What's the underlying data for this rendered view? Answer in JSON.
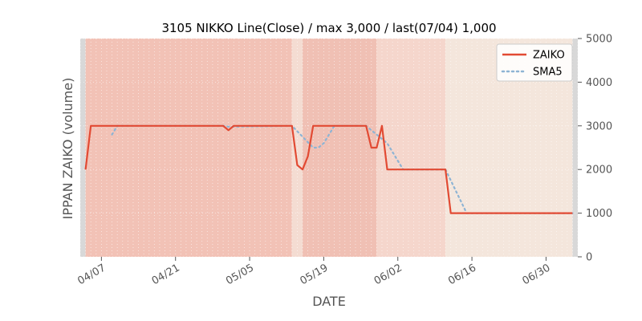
{
  "chart_data": {
    "type": "line",
    "title": "3105 NIKKO Line(Close) / max 3,000 / last(07/04) 1,000",
    "xlabel": "DATE",
    "ylabel": "IPPAN ZAIKO (volume)",
    "ylim": [
      0,
      5000
    ],
    "y_ticks": [
      0,
      1000,
      2000,
      3000,
      4000,
      5000
    ],
    "y_axis_side": "right",
    "xlim": [
      "2024-04-03",
      "2024-07-06"
    ],
    "x_ticks": [
      {
        "date": "2024-04-07",
        "label": "04/07"
      },
      {
        "date": "2024-04-21",
        "label": "04/21"
      },
      {
        "date": "2024-05-05",
        "label": "05/05"
      },
      {
        "date": "2024-05-19",
        "label": "05/19"
      },
      {
        "date": "2024-06-02",
        "label": "06/02"
      },
      {
        "date": "2024-06-16",
        "label": "06/16"
      },
      {
        "date": "2024-06-30",
        "label": "06/30"
      }
    ],
    "grid": true,
    "legend_position": "top-right",
    "background_bands": [
      {
        "start": "2024-04-03",
        "end": "2024-04-04",
        "color": "#d8d8d8"
      },
      {
        "start": "2024-04-04",
        "end": "2024-05-13",
        "color": "#f2c2b6"
      },
      {
        "start": "2024-05-13",
        "end": "2024-05-15",
        "color": "#f4dcd2"
      },
      {
        "start": "2024-05-15",
        "end": "2024-05-29",
        "color": "#f0c0b4"
      },
      {
        "start": "2024-05-29",
        "end": "2024-06-11",
        "color": "#f5d6cc"
      },
      {
        "start": "2024-06-11",
        "end": "2024-07-05",
        "color": "#f4e6dc"
      },
      {
        "start": "2024-07-05",
        "end": "2024-07-06",
        "color": "#d8d8d8"
      }
    ],
    "series": [
      {
        "name": "ZAIKO",
        "color": "#e24a33",
        "style": "solid",
        "points": [
          [
            "2024-04-04",
            2000
          ],
          [
            "2024-04-05",
            3000
          ],
          [
            "2024-04-30",
            3000
          ],
          [
            "2024-05-01",
            2900
          ],
          [
            "2024-05-02",
            3000
          ],
          [
            "2024-05-13",
            3000
          ],
          [
            "2024-05-14",
            2100
          ],
          [
            "2024-05-15",
            2000
          ],
          [
            "2024-05-16",
            2300
          ],
          [
            "2024-05-17",
            3000
          ],
          [
            "2024-05-27",
            3000
          ],
          [
            "2024-05-28",
            2500
          ],
          [
            "2024-05-29",
            2500
          ],
          [
            "2024-05-30",
            3000
          ],
          [
            "2024-05-31",
            2000
          ],
          [
            "2024-06-11",
            2000
          ],
          [
            "2024-06-12",
            1000
          ],
          [
            "2024-07-05",
            1000
          ]
        ]
      },
      {
        "name": "SMA5",
        "color": "#8eb4d4",
        "style": "dotted",
        "points": [
          [
            "2024-04-09",
            2800
          ],
          [
            "2024-04-10",
            3000
          ],
          [
            "2024-04-30",
            3000
          ],
          [
            "2024-05-01",
            2980
          ],
          [
            "2024-05-13",
            3000
          ],
          [
            "2024-05-17",
            2500
          ],
          [
            "2024-05-18",
            2500
          ],
          [
            "2024-05-19",
            2600
          ],
          [
            "2024-05-21",
            3000
          ],
          [
            "2024-05-27",
            3000
          ],
          [
            "2024-05-31",
            2600
          ],
          [
            "2024-06-03",
            2000
          ],
          [
            "2024-06-11",
            2000
          ],
          [
            "2024-06-15",
            1000
          ],
          [
            "2024-07-05",
            1000
          ]
        ]
      }
    ]
  }
}
